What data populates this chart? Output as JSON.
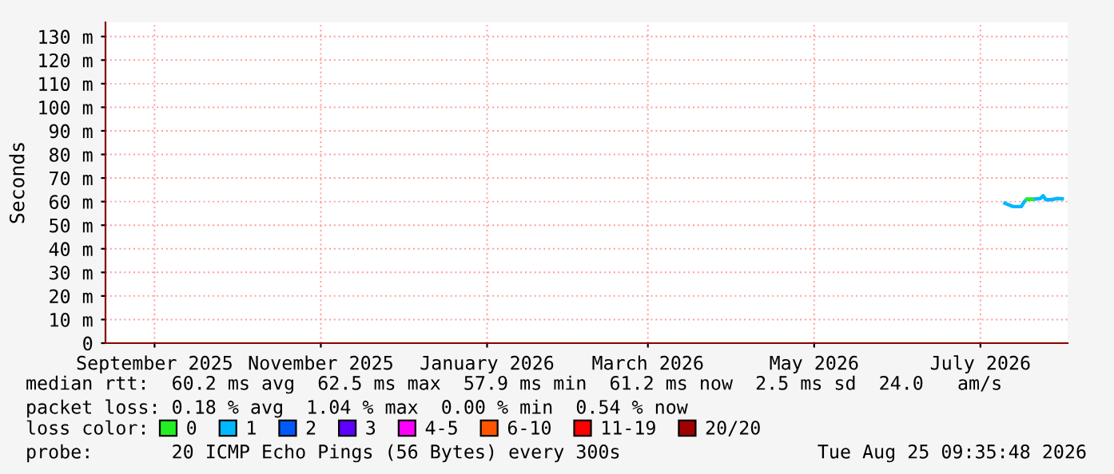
{
  "chart_data": {
    "type": "line",
    "ylabel": "Seconds",
    "x": [
      "2026-07-10",
      "2026-07-11",
      "2026-07-13",
      "2026-07-16",
      "2026-07-17",
      "2026-07-18",
      "2026-07-20",
      "2026-07-23",
      "2026-07-24",
      "2026-07-25",
      "2026-07-27",
      "2026-07-29",
      "2026-07-31"
    ],
    "series": [
      {
        "name": "0",
        "color": "#22ee22",
        "values": [
          null,
          null,
          null,
          null,
          null,
          61,
          61,
          null,
          null,
          null,
          null,
          null,
          null
        ]
      },
      {
        "name": "1",
        "color": "#00b8ff",
        "values": [
          59.3,
          58.8,
          57.9,
          57.9,
          59.8,
          61,
          61,
          61.3,
          62.5,
          60.8,
          60.8,
          61.3,
          61.2
        ]
      },
      {
        "name": "2",
        "color": "#0059ff",
        "values": [
          null,
          null,
          null,
          null,
          null,
          null,
          null,
          null,
          null,
          null,
          null,
          null,
          null
        ]
      },
      {
        "name": "3",
        "color": "#5e00ff",
        "values": [
          null,
          null,
          null,
          null,
          null,
          null,
          null,
          null,
          null,
          null,
          null,
          null,
          null
        ]
      },
      {
        "name": "4-5",
        "color": "#ff00ff",
        "values": [
          null,
          null,
          null,
          null,
          null,
          null,
          null,
          null,
          null,
          null,
          null,
          null,
          null
        ]
      },
      {
        "name": "6-10",
        "color": "#ff5500",
        "values": [
          null,
          null,
          null,
          null,
          null,
          null,
          null,
          null,
          null,
          null,
          null,
          null,
          null
        ]
      },
      {
        "name": "11-19",
        "color": "#ff0000",
        "values": [
          null,
          null,
          null,
          null,
          null,
          null,
          null,
          null,
          null,
          null,
          null,
          null,
          null
        ]
      },
      {
        "name": "20/20",
        "color": "#a10000",
        "values": [
          null,
          null,
          null,
          null,
          null,
          null,
          null,
          null,
          null,
          null,
          null,
          null,
          null
        ]
      }
    ],
    "legend": "bottom",
    "legend_title": "loss color:",
    "xlim": [
      "2025-08-14",
      "2026-08-02"
    ],
    "xticks": [
      {
        "value": "2025-09-01",
        "label": "September 2025"
      },
      {
        "value": "2025-11-01",
        "label": "November 2025"
      },
      {
        "value": "2026-01-01",
        "label": "January 2026"
      },
      {
        "value": "2026-03-01",
        "label": "March 2026"
      },
      {
        "value": "2026-05-01",
        "label": "May 2026"
      },
      {
        "value": "2026-07-01",
        "label": "July 2026"
      }
    ],
    "ylim": [
      0,
      136
    ],
    "yticks": [
      0,
      {
        "value": 10,
        "label": "10 m"
      },
      {
        "value": 20,
        "label": "20 m"
      },
      {
        "value": 30,
        "label": "30 m"
      },
      {
        "value": 40,
        "label": "40 m"
      },
      {
        "value": 50,
        "label": "50 m"
      },
      {
        "value": 60,
        "label": "60 m"
      },
      {
        "value": 70,
        "label": "70 m"
      },
      {
        "value": 80,
        "label": "80 m"
      },
      {
        "value": 90,
        "label": "90 m"
      },
      {
        "value": 100,
        "label": "100 m"
      },
      {
        "value": 110,
        "label": "110 m"
      },
      {
        "value": 120,
        "label": "120 m"
      },
      {
        "value": 130,
        "label": "130 m"
      }
    ],
    "grid": true,
    "marker": "none",
    "line_style": "solid",
    "annotations": [
      "median rtt:  60.2 ms avg  62.5 ms max  57.9 ms min  61.2 ms now  2.5 ms sd  24.0   am/s",
      "packet loss: 0.18 % avg  1.04 % max  0.00 % min  0.54 % now",
      "probe:       20 ICMP Echo Pings (56 Bytes) every 300s",
      "Tue Aug 25 09:35:48 2026"
    ]
  }
}
